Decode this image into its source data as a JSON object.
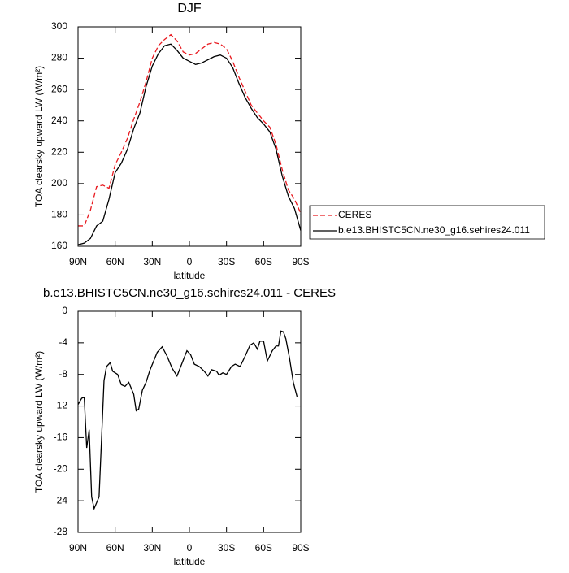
{
  "chart_data": [
    {
      "type": "line",
      "title": "DJF",
      "xlabel": "latitude",
      "ylabel": "TOA clearsky upward LW (W/m²)",
      "x": [
        90,
        85,
        80,
        75,
        70,
        65,
        60,
        55,
        50,
        45,
        40,
        35,
        30,
        25,
        20,
        15,
        10,
        5,
        0,
        -5,
        -10,
        -15,
        -20,
        -25,
        -30,
        -35,
        -40,
        -45,
        -50,
        -55,
        -60,
        -65,
        -70,
        -75,
        -80,
        -85,
        -90
      ],
      "xlim": [
        90,
        -90
      ],
      "xticks": [
        {
          "value": 90,
          "label": "90N"
        },
        {
          "value": 60,
          "label": "60N"
        },
        {
          "value": 30,
          "label": "30N"
        },
        0,
        {
          "value": -30,
          "label": "30S"
        },
        {
          "value": -60,
          "label": "60S"
        },
        {
          "value": -90,
          "label": "90S"
        }
      ],
      "ylim": [
        160,
        300
      ],
      "yticks": [
        160,
        180,
        200,
        220,
        240,
        260,
        280,
        300
      ],
      "legend": "outside-right",
      "series": [
        {
          "name": "CERES",
          "color": "#e8191f",
          "dash": true,
          "values": [
            173,
            173,
            183,
            198,
            199,
            197,
            212,
            220,
            229,
            241,
            252,
            265,
            280,
            288,
            292,
            295,
            291,
            284,
            282,
            283,
            286,
            289,
            290,
            289,
            286,
            278,
            268,
            259,
            250,
            245,
            240,
            236,
            225,
            209,
            196,
            190,
            181
          ]
        },
        {
          "name": "b.e13.BHISTC5CN.ne30_g16.sehires24.011",
          "color": "#000000",
          "dash": false,
          "values": [
            161,
            162,
            165,
            173,
            176,
            190,
            207,
            213,
            222,
            235,
            245,
            262,
            275,
            283,
            288,
            289,
            285,
            280,
            278,
            276,
            277,
            279,
            281,
            282,
            280,
            274,
            264,
            255,
            248,
            242,
            238,
            233,
            222,
            205,
            192,
            184,
            170
          ]
        }
      ]
    },
    {
      "type": "line",
      "title": "b.e13.BHISTC5CN.ne30_g16.sehires24.011 - CERES",
      "xlabel": "latitude",
      "ylabel": "TOA clearsky upward LW (W/m²)",
      "x": [
        90,
        87,
        85,
        83,
        81,
        79,
        77,
        73,
        69,
        67,
        64,
        62,
        58,
        55,
        52,
        49,
        45,
        43,
        41,
        38,
        35,
        32,
        26,
        22,
        18,
        14,
        10,
        7,
        2,
        -1,
        -4,
        -8,
        -12,
        -15,
        -18,
        -22,
        -24,
        -27,
        -30,
        -34,
        -37,
        -41,
        -45,
        -49,
        -52,
        -55,
        -57,
        -60,
        -63,
        -67,
        -70,
        -72,
        -74,
        -76,
        -78,
        -81,
        -84,
        -87
      ],
      "xlim": [
        90,
        -90
      ],
      "xticks": [
        {
          "value": 90,
          "label": "90N"
        },
        {
          "value": 60,
          "label": "60N"
        },
        {
          "value": 30,
          "label": "30N"
        },
        0,
        {
          "value": -30,
          "label": "30S"
        },
        {
          "value": -60,
          "label": "60S"
        },
        {
          "value": -90,
          "label": "90S"
        }
      ],
      "ylim": [
        -28,
        0
      ],
      "yticks": [
        -28,
        -24,
        -20,
        -16,
        -12,
        -8,
        -4,
        0
      ],
      "series": [
        {
          "color": "#000000",
          "dash": false,
          "values": [
            -11.8,
            -11,
            -10.9,
            -17.3,
            -15,
            -23.5,
            -25,
            -23.5,
            -8.8,
            -7,
            -6.5,
            -7.6,
            -8,
            -9.3,
            -9.5,
            -9,
            -10.5,
            -12.6,
            -12.4,
            -10,
            -9,
            -7.5,
            -5.2,
            -4.5,
            -5.7,
            -7.2,
            -8.2,
            -7,
            -5,
            -5.5,
            -6.7,
            -7,
            -7.6,
            -8.2,
            -7.4,
            -7.6,
            -8.1,
            -7.8,
            -8,
            -7,
            -6.7,
            -7,
            -5.7,
            -4.3,
            -4,
            -4.8,
            -3.8,
            -3.8,
            -6.3,
            -5,
            -4.4,
            -4.4,
            -2.5,
            -2.6,
            -3.5,
            -6,
            -9,
            -10.8
          ]
        }
      ]
    }
  ]
}
